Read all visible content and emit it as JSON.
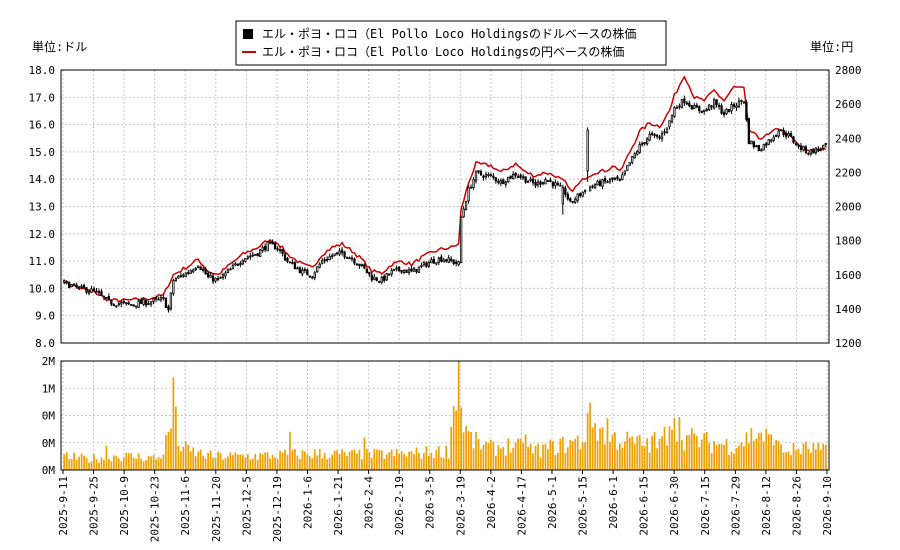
{
  "legend": {
    "usd_label": "エル・ポヨ・ロコ（El Pollo Loco Holdingsのドルベースの株価",
    "jpy_label": "エル・ポヨ・ロコ（El Pollo Loco Holdingsの円ベースの株価"
  },
  "axis_units": {
    "left": "単位:ドル",
    "right": "単位:円"
  },
  "colors": {
    "candle": "#000000",
    "jpy_line": "#cc0000",
    "volume": "#f0a000",
    "grid": "#c8c8c8"
  },
  "chart_data": [
    {
      "type": "candlestick",
      "legend_position": "top-center",
      "grid": true,
      "x_labels": [
        "2025-9-11",
        "2025-9-25",
        "2025-10-9",
        "2025-10-23",
        "2025-11-6",
        "2025-11-20",
        "2025-12-5",
        "2025-12-19",
        "2026-1-6",
        "2026-1-21",
        "2026-2-4",
        "2026-2-19",
        "2026-3-5",
        "2026-3-19",
        "2026-4-2",
        "2026-4-17",
        "2026-5-1",
        "2026-5-15",
        "2026-6-1",
        "2026-6-15",
        "2026-6-30",
        "2026-7-15",
        "2026-7-29",
        "2026-8-12",
        "2026-8-26",
        "2026-9-10"
      ],
      "left_axis": {
        "ylim": [
          8.0,
          18.0
        ],
        "ticks": [
          "8.0",
          "9.0",
          "10.0",
          "11.0",
          "12.0",
          "13.0",
          "14.0",
          "15.0",
          "16.0",
          "17.0",
          "18.0"
        ]
      },
      "right_axis": {
        "ylim": [
          1200,
          2800
        ],
        "ticks": [
          "1200",
          "1400",
          "1600",
          "1800",
          "2000",
          "2200",
          "2400",
          "2600",
          "2800"
        ]
      },
      "usd_close_anchors": [
        [
          0,
          10.2
        ],
        [
          6,
          10.0
        ],
        [
          12,
          9.9
        ],
        [
          18,
          9.5
        ],
        [
          26,
          9.4
        ],
        [
          34,
          9.5
        ],
        [
          40,
          9.6
        ],
        [
          42,
          9.2
        ],
        [
          44,
          10.3
        ],
        [
          50,
          10.6
        ],
        [
          54,
          10.9
        ],
        [
          58,
          10.4
        ],
        [
          62,
          10.3
        ],
        [
          66,
          10.6
        ],
        [
          72,
          11.1
        ],
        [
          78,
          11.3
        ],
        [
          82,
          11.6
        ],
        [
          86,
          11.5
        ],
        [
          90,
          11.0
        ],
        [
          96,
          10.6
        ],
        [
          100,
          10.5
        ],
        [
          104,
          11.0
        ],
        [
          108,
          11.2
        ],
        [
          112,
          11.3
        ],
        [
          116,
          11.1
        ],
        [
          120,
          10.8
        ],
        [
          124,
          10.4
        ],
        [
          128,
          10.3
        ],
        [
          132,
          10.6
        ],
        [
          136,
          10.7
        ],
        [
          140,
          10.6
        ],
        [
          144,
          10.8
        ],
        [
          148,
          11.0
        ],
        [
          152,
          11.1
        ],
        [
          156,
          11.0
        ],
        [
          159,
          10.9
        ],
        [
          160,
          12.6
        ],
        [
          163,
          13.6
        ],
        [
          166,
          14.2
        ],
        [
          172,
          14.1
        ],
        [
          176,
          13.9
        ],
        [
          182,
          14.2
        ],
        [
          186,
          14.0
        ],
        [
          190,
          13.8
        ],
        [
          194,
          14.0
        ],
        [
          198,
          13.8
        ],
        [
          202,
          13.5
        ],
        [
          204,
          13.1
        ],
        [
          206,
          13.3
        ],
        [
          210,
          13.6
        ],
        [
          214,
          13.8
        ],
        [
          218,
          13.9
        ],
        [
          222,
          14.0
        ],
        [
          224,
          13.9
        ],
        [
          228,
          14.6
        ],
        [
          232,
          15.2
        ],
        [
          236,
          15.6
        ],
        [
          240,
          15.5
        ],
        [
          244,
          16.1
        ],
        [
          246,
          16.6
        ],
        [
          250,
          16.9
        ],
        [
          254,
          16.6
        ],
        [
          258,
          16.5
        ],
        [
          262,
          16.8
        ],
        [
          266,
          16.4
        ],
        [
          270,
          16.7
        ],
        [
          274,
          16.9
        ],
        [
          276,
          15.4
        ],
        [
          280,
          15.1
        ],
        [
          284,
          15.4
        ],
        [
          288,
          15.8
        ],
        [
          292,
          15.6
        ],
        [
          296,
          15.2
        ],
        [
          300,
          15.0
        ],
        [
          304,
          15.1
        ],
        [
          306,
          15.2
        ]
      ],
      "jpy_close_anchors": [
        [
          0,
          1560
        ],
        [
          6,
          1520
        ],
        [
          12,
          1500
        ],
        [
          18,
          1450
        ],
        [
          26,
          1450
        ],
        [
          34,
          1460
        ],
        [
          40,
          1480
        ],
        [
          44,
          1600
        ],
        [
          50,
          1650
        ],
        [
          54,
          1690
        ],
        [
          58,
          1620
        ],
        [
          62,
          1600
        ],
        [
          66,
          1650
        ],
        [
          72,
          1720
        ],
        [
          78,
          1760
        ],
        [
          82,
          1800
        ],
        [
          86,
          1790
        ],
        [
          90,
          1720
        ],
        [
          96,
          1660
        ],
        [
          100,
          1640
        ],
        [
          104,
          1720
        ],
        [
          108,
          1760
        ],
        [
          112,
          1780
        ],
        [
          116,
          1740
        ],
        [
          120,
          1690
        ],
        [
          124,
          1620
        ],
        [
          128,
          1610
        ],
        [
          132,
          1660
        ],
        [
          136,
          1680
        ],
        [
          140,
          1660
        ],
        [
          144,
          1700
        ],
        [
          148,
          1730
        ],
        [
          152,
          1750
        ],
        [
          156,
          1760
        ],
        [
          159,
          1780
        ],
        [
          160,
          1980
        ],
        [
          163,
          2140
        ],
        [
          166,
          2250
        ],
        [
          172,
          2240
        ],
        [
          176,
          2200
        ],
        [
          182,
          2250
        ],
        [
          186,
          2200
        ],
        [
          190,
          2180
        ],
        [
          194,
          2200
        ],
        [
          198,
          2180
        ],
        [
          202,
          2140
        ],
        [
          204,
          2090
        ],
        [
          206,
          2110
        ],
        [
          210,
          2170
        ],
        [
          214,
          2200
        ],
        [
          218,
          2210
        ],
        [
          222,
          2240
        ],
        [
          224,
          2200
        ],
        [
          228,
          2320
        ],
        [
          232,
          2440
        ],
        [
          236,
          2490
        ],
        [
          240,
          2470
        ],
        [
          244,
          2560
        ],
        [
          246,
          2650
        ],
        [
          250,
          2770
        ],
        [
          254,
          2640
        ],
        [
          258,
          2620
        ],
        [
          262,
          2680
        ],
        [
          266,
          2620
        ],
        [
          270,
          2700
        ],
        [
          274,
          2690
        ],
        [
          276,
          2450
        ],
        [
          280,
          2400
        ],
        [
          284,
          2420
        ],
        [
          288,
          2460
        ],
        [
          292,
          2420
        ],
        [
          296,
          2360
        ],
        [
          300,
          2320
        ],
        [
          304,
          2330
        ],
        [
          306,
          2340
        ]
      ],
      "spikes": [
        {
          "index": 201,
          "high": 13.8,
          "low": 12.7
        },
        {
          "index": 211,
          "high": 15.9,
          "low": 13.9
        }
      ]
    },
    {
      "type": "bar",
      "series_name": "volume",
      "ylim": [
        0,
        2000000
      ],
      "ticks": [
        "0M",
        "0M",
        "0M",
        "1M",
        "2M"
      ],
      "values_anchors": [
        [
          0,
          250000
        ],
        [
          10,
          200000
        ],
        [
          20,
          260000
        ],
        [
          30,
          240000
        ],
        [
          38,
          220000
        ],
        [
          40,
          350000
        ],
        [
          43,
          800000
        ],
        [
          44,
          1200000
        ],
        [
          46,
          500000
        ],
        [
          50,
          350000
        ],
        [
          60,
          250000
        ],
        [
          80,
          260000
        ],
        [
          100,
          300000
        ],
        [
          120,
          280000
        ],
        [
          140,
          300000
        ],
        [
          155,
          350000
        ],
        [
          159,
          2000000
        ],
        [
          160,
          1100000
        ],
        [
          162,
          700000
        ],
        [
          166,
          500000
        ],
        [
          172,
          400000
        ],
        [
          180,
          450000
        ],
        [
          190,
          350000
        ],
        [
          200,
          450000
        ],
        [
          210,
          550000
        ],
        [
          211,
          1050000
        ],
        [
          212,
          900000
        ],
        [
          220,
          600000
        ],
        [
          230,
          500000
        ],
        [
          240,
          450000
        ],
        [
          246,
          950000
        ],
        [
          250,
          600000
        ],
        [
          260,
          500000
        ],
        [
          270,
          450000
        ],
        [
          280,
          700000
        ],
        [
          290,
          350000
        ],
        [
          300,
          400000
        ],
        [
          306,
          350000
        ]
      ],
      "spikes": [
        [
          17,
          450000
        ],
        [
          44,
          1700000
        ],
        [
          91,
          700000
        ],
        [
          121,
          600000
        ],
        [
          159,
          2000000
        ],
        [
          160,
          1150000
        ],
        [
          164,
          700000
        ],
        [
          186,
          650000
        ],
        [
          211,
          1050000
        ],
        [
          219,
          950000
        ],
        [
          238,
          700000
        ],
        [
          244,
          800000
        ],
        [
          246,
          950000
        ],
        [
          287,
          550000
        ]
      ]
    }
  ]
}
